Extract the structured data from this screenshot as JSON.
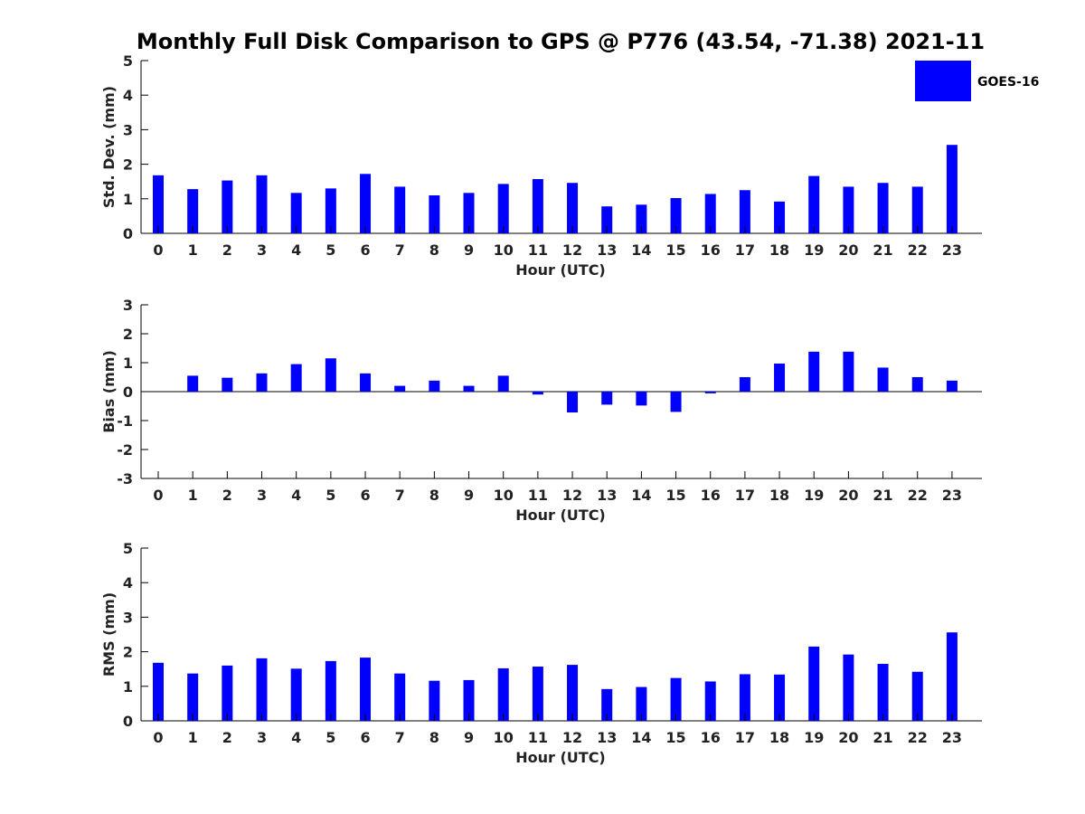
{
  "chart_data": {
    "type": "bar",
    "title": "Monthly Full Disk Comparison to GPS @ P776 (43.54, -71.38) 2021-11",
    "legend": {
      "entries": [
        "GOES-16"
      ],
      "placement": "top-right",
      "color": "#0000ff"
    },
    "categories": [
      "0",
      "1",
      "2",
      "3",
      "4",
      "5",
      "6",
      "7",
      "8",
      "9",
      "10",
      "11",
      "12",
      "13",
      "14",
      "15",
      "16",
      "17",
      "18",
      "19",
      "20",
      "21",
      "22",
      "23"
    ],
    "panels": [
      {
        "id": "std",
        "ylabel": "Std. Dev. (mm)",
        "xlabel": "Hour (UTC)",
        "ylim": [
          0,
          5
        ],
        "yticks": [
          "0",
          "1",
          "2",
          "3",
          "4",
          "5"
        ],
        "series": [
          {
            "name": "GOES-16",
            "values": [
              1.68,
              1.28,
              1.53,
              1.68,
              1.17,
              1.3,
              1.72,
              1.35,
              1.1,
              1.17,
              1.43,
              1.57,
              1.46,
              0.78,
              0.83,
              1.02,
              1.14,
              1.25,
              0.92,
              1.66,
              1.35,
              1.46,
              1.35,
              2.56
            ]
          }
        ]
      },
      {
        "id": "bias",
        "ylabel": "Bias (mm)",
        "xlabel": "Hour (UTC)",
        "ylim": [
          -3,
          3
        ],
        "yticks": [
          "-3",
          "-2",
          "-1",
          "0",
          "1",
          "2",
          "3"
        ],
        "zero_line": true,
        "series": [
          {
            "name": "GOES-16",
            "values": [
              0.0,
              0.55,
              0.48,
              0.63,
              0.95,
              1.15,
              0.63,
              0.2,
              0.38,
              0.2,
              0.55,
              -0.1,
              -0.72,
              -0.45,
              -0.48,
              -0.7,
              -0.06,
              0.5,
              0.97,
              1.38,
              1.38,
              0.83,
              0.5,
              0.38
            ]
          }
        ]
      },
      {
        "id": "rms",
        "ylabel": "RMS (mm)",
        "xlabel": "Hour (UTC)",
        "ylim": [
          0,
          5
        ],
        "yticks": [
          "0",
          "1",
          "2",
          "3",
          "4",
          "5"
        ],
        "series": [
          {
            "name": "GOES-16",
            "values": [
              1.68,
              1.37,
              1.6,
              1.81,
              1.51,
              1.73,
              1.83,
              1.37,
              1.16,
              1.18,
              1.52,
              1.57,
              1.62,
              0.92,
              0.98,
              1.24,
              1.14,
              1.35,
              1.34,
              2.15,
              1.92,
              1.65,
              1.42,
              2.56
            ]
          }
        ]
      }
    ]
  }
}
